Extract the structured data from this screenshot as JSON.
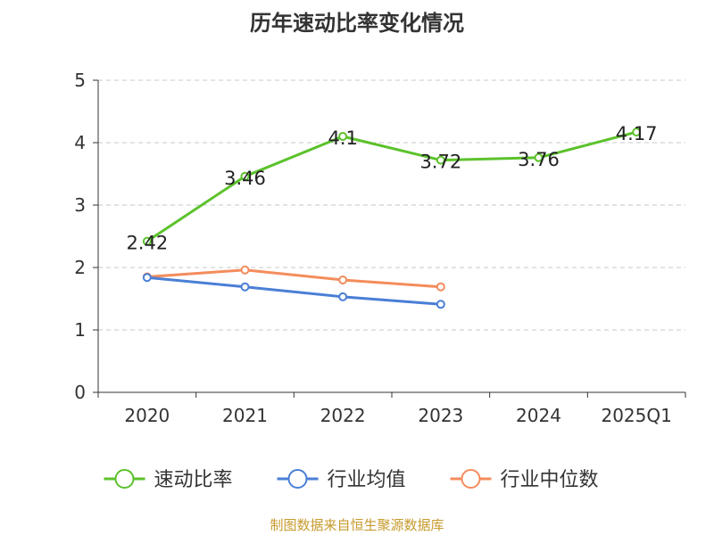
{
  "chart_data": {
    "type": "line",
    "title": "历年速动比率变化情况",
    "categories": [
      "2020",
      "2021",
      "2022",
      "2023",
      "2024",
      "2025Q1"
    ],
    "ylim": [
      0,
      5
    ],
    "yticks": [
      "0",
      "1",
      "2",
      "3",
      "4",
      "5"
    ],
    "grid": true,
    "legend_position": "bottom",
    "series": [
      {
        "name": "速动比率",
        "color": "#5cc22c",
        "values": [
          2.42,
          3.46,
          4.1,
          3.72,
          3.76,
          4.17
        ],
        "labels": [
          "2.42",
          "3.46",
          "4.1",
          "3.72",
          "3.76",
          "4.17"
        ]
      },
      {
        "name": "行业均值",
        "color": "#4a7fd6",
        "values": [
          1.84,
          1.69,
          1.53,
          1.41,
          null,
          null
        ]
      },
      {
        "name": "行业中位数",
        "color": "#f48c5c",
        "values": [
          1.85,
          1.96,
          1.8,
          1.69,
          null,
          null
        ]
      }
    ],
    "source": "制图数据来自恒生聚源数据库"
  }
}
